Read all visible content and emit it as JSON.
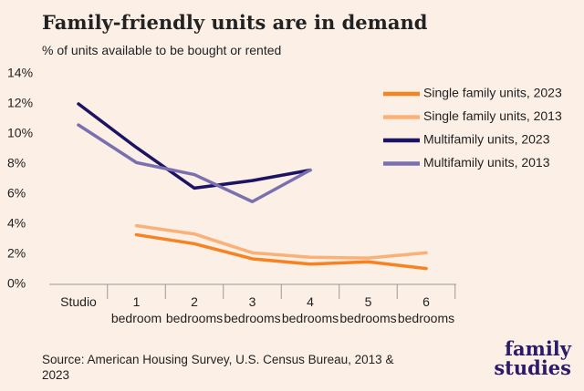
{
  "chart_data": {
    "type": "line",
    "title": "Family-friendly units are in demand",
    "subtitle": "% of units available to be bought or rented",
    "source": "Source: American Housing Survey, U.S. Census Bureau, 2013 & 2023",
    "logo": [
      "family",
      "studies"
    ],
    "categories": [
      "Studio",
      "1 bedroom",
      "2 bedrooms",
      "3 bedrooms",
      "4 bedrooms",
      "5 bedrooms",
      "6 bedrooms"
    ],
    "series": [
      {
        "name": "Single family units, 2023",
        "color": "#f7821f",
        "values": [
          null,
          3.3,
          2.7,
          1.7,
          1.35,
          1.5,
          1.05
        ]
      },
      {
        "name": "Single family units, 2013",
        "color": "#fbb077",
        "values": [
          null,
          3.9,
          3.35,
          2.1,
          1.8,
          1.75,
          2.1
        ]
      },
      {
        "name": "Multifamily units, 2023",
        "color": "#1c1462",
        "values": [
          12.0,
          9.1,
          6.4,
          6.9,
          7.6,
          null,
          null
        ]
      },
      {
        "name": "Multifamily units, 2013",
        "color": "#7a70b0",
        "values": [
          10.6,
          8.1,
          7.3,
          5.5,
          7.6,
          null,
          null
        ]
      }
    ],
    "ylim": [
      0,
      14
    ],
    "yticks": [
      {
        "value": 0,
        "label": "0%"
      },
      {
        "value": 2,
        "label": "2%"
      },
      {
        "value": 4,
        "label": "4%"
      },
      {
        "value": 6,
        "label": "6%"
      },
      {
        "value": 8,
        "label": "8%"
      },
      {
        "value": 10,
        "label": "10%"
      },
      {
        "value": 12,
        "label": "12%"
      },
      {
        "value": 14,
        "label": "14%"
      }
    ],
    "grid": false,
    "legend": "right"
  }
}
